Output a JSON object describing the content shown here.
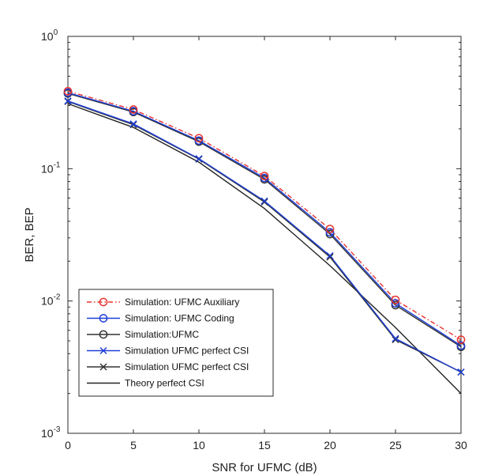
{
  "chart_data": {
    "type": "line",
    "xlabel": "SNR for UFMC (dB)",
    "ylabel": "BER, BEP",
    "xlim": [
      0,
      30
    ],
    "ylim": [
      0.001,
      1
    ],
    "yscale": "log",
    "grid": false,
    "x_ticks": [
      {
        "value": 0,
        "label": "0"
      },
      {
        "value": 5,
        "label": "5"
      },
      {
        "value": 10,
        "label": "10"
      },
      {
        "value": 15,
        "label": "15"
      },
      {
        "value": 20,
        "label": "20"
      },
      {
        "value": 25,
        "label": "25"
      },
      {
        "value": 30,
        "label": "30"
      }
    ],
    "y_ticks": [
      {
        "value": 1,
        "base": "10",
        "exp": "0"
      },
      {
        "value": 0.1,
        "base": "10",
        "exp": "-1"
      },
      {
        "value": 0.01,
        "base": "10",
        "exp": "-2"
      },
      {
        "value": 0.001,
        "base": "10",
        "exp": "-3"
      }
    ],
    "legend_position": "bottom-left",
    "x": [
      0,
      5,
      10,
      15,
      20,
      25,
      30
    ],
    "series": [
      {
        "name": "Simulation: UFMC Auxiliary",
        "color": "#e8332f",
        "line": "dashdot",
        "marker": "circle",
        "values": [
          0.385,
          0.28,
          0.17,
          0.088,
          0.035,
          0.0102,
          0.0051
        ]
      },
      {
        "name": "Simulation: UFMC Coding",
        "color": "#1f3fd8",
        "line": "solid",
        "marker": "circle",
        "values": [
          0.375,
          0.272,
          0.163,
          0.085,
          0.033,
          0.0096,
          0.0046
        ]
      },
      {
        "name": "Simulation:UFMC",
        "color": "#333333",
        "line": "solid",
        "marker": "circle",
        "values": [
          0.37,
          0.268,
          0.16,
          0.083,
          0.032,
          0.0093,
          0.0045
        ]
      },
      {
        "name": "Simulation UFMC perfect CSI",
        "color": "#1f3fd8",
        "line": "solid",
        "marker": "x",
        "values": [
          0.325,
          0.218,
          0.119,
          0.057,
          0.022,
          0.0052,
          0.0029
        ]
      },
      {
        "name": "Simulation UFMC perfect CSI",
        "color": "#333333",
        "line": "solid",
        "marker": "x",
        "values": [
          0.322,
          0.215,
          0.118,
          0.056,
          0.0215,
          0.0051,
          0.0029
        ]
      },
      {
        "name": "Theory perfect CSI",
        "color": "#222222",
        "line": "solid",
        "marker": "none",
        "values": [
          0.31,
          0.205,
          0.112,
          0.05,
          0.0185,
          0.0063,
          0.002
        ]
      }
    ]
  }
}
